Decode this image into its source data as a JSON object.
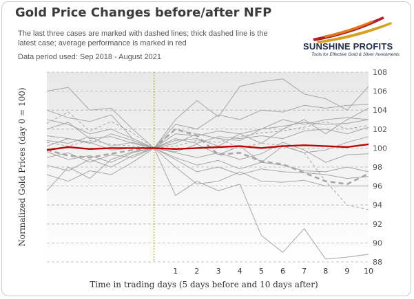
{
  "title": "Gold Price Changes before/after NFP",
  "subtitle": "The last three cases are marked with dashed lines; thick dashed line is the latest case; average performance is marked in red",
  "period": "Data period used: Sep 2018 - August 2021",
  "logo": {
    "name": "SUNSHINE PROFITS",
    "tagline": "Tools for Effective Gold & Silver Investments"
  },
  "chart_data": {
    "type": "line",
    "xlabel": "Time in trading days (5 days before and 10 days after)",
    "ylabel": "Normalized Gold Prices (day 0 = 100)",
    "x": [
      -5,
      -4,
      -3,
      -2,
      -1,
      0,
      1,
      2,
      3,
      4,
      5,
      6,
      7,
      8,
      9,
      10
    ],
    "x_tick_labels": [
      "",
      "",
      "",
      "",
      "",
      "",
      "1",
      "2",
      "3",
      "4",
      "5",
      "6",
      "7",
      "8",
      "9",
      "10"
    ],
    "ylim": [
      88,
      108
    ],
    "y_ticks": [
      88,
      90,
      92,
      94,
      96,
      98,
      100,
      102,
      104,
      106,
      108
    ],
    "y_axis_position": "right",
    "event_marker": {
      "x": 0,
      "style": "dotted",
      "color": "#c8a020"
    },
    "colors": {
      "history": "#a6a6a6",
      "average": "#c00000",
      "event": "#c8a020",
      "grid": "#b0b0b0"
    },
    "series": [
      {
        "values": [
          106.0,
          106.4,
          104.0,
          104.2,
          102.0,
          100.0,
          103.0,
          105.0,
          103.3,
          106.5,
          107.0,
          107.3,
          105.7,
          105.2,
          104.0,
          106.5
        ],
        "style": "solid"
      },
      {
        "values": [
          104.0,
          103.2,
          102.8,
          103.5,
          101.0,
          100.0,
          102.5,
          102.0,
          103.5,
          103.0,
          104.0,
          103.8,
          104.5,
          104.2,
          104.5,
          104.6
        ],
        "style": "solid"
      },
      {
        "values": [
          103.0,
          102.5,
          101.5,
          102.0,
          101.0,
          100.0,
          101.5,
          101.3,
          101.8,
          101.5,
          102.0,
          102.3,
          102.7,
          102.5,
          102.6,
          103.0
        ],
        "style": "solid"
      },
      {
        "values": [
          102.0,
          102.7,
          101.0,
          101.2,
          100.5,
          100.0,
          101.0,
          100.5,
          101.2,
          101.0,
          101.3,
          101.0,
          101.8,
          102.0,
          101.5,
          102.2
        ],
        "style": "solid"
      },
      {
        "values": [
          101.3,
          101.0,
          100.5,
          101.5,
          100.8,
          100.0,
          100.5,
          101.5,
          101.0,
          100.8,
          102.0,
          103.0,
          102.5,
          103.0,
          103.2,
          103.0
        ],
        "style": "solid"
      },
      {
        "values": [
          100.8,
          100.5,
          101.2,
          100.2,
          100.6,
          100.0,
          100.8,
          101.0,
          100.2,
          101.5,
          100.5,
          102.0,
          103.0,
          101.5,
          103.0,
          104.2
        ],
        "style": "solid"
      },
      {
        "values": [
          100.2,
          101.0,
          100.6,
          99.8,
          100.0,
          100.0,
          99.6,
          100.4,
          99.3,
          100.2,
          98.5,
          100.2,
          99.5,
          99.8,
          100.6,
          101.2
        ],
        "style": "solid"
      },
      {
        "values": [
          99.6,
          98.8,
          99.2,
          98.5,
          99.5,
          100.0,
          99.5,
          99.0,
          99.5,
          98.8,
          99.4,
          100.6,
          99.8,
          98.5,
          99.3,
          99.4
        ],
        "style": "solid"
      },
      {
        "values": [
          99.0,
          99.5,
          98.5,
          99.3,
          99.0,
          100.0,
          99.0,
          98.2,
          98.7,
          97.8,
          98.5,
          98.2,
          97.6,
          97.5,
          98.0,
          97.5
        ],
        "style": "solid"
      },
      {
        "values": [
          98.2,
          97.6,
          98.8,
          98.0,
          99.2,
          100.0,
          98.8,
          97.5,
          98.0,
          97.2,
          97.8,
          97.5,
          97.4,
          97.2,
          96.8,
          97.0
        ],
        "style": "solid"
      },
      {
        "values": [
          97.2,
          96.5,
          97.6,
          97.2,
          98.5,
          100.0,
          98.0,
          96.2,
          96.5,
          97.5,
          96.5,
          96.4,
          96.6,
          96.0,
          96.0,
          96.0
        ],
        "style": "solid"
      },
      {
        "values": [
          95.5,
          98.0,
          96.8,
          98.8,
          99.6,
          100.0,
          95.0,
          96.5,
          95.5,
          96.2,
          90.8,
          89.0,
          91.5,
          88.3,
          88.5,
          88.8
        ],
        "style": "solid"
      },
      {
        "values": [
          102.6,
          103.8,
          101.8,
          102.8,
          101.6,
          100.0,
          102.0,
          101.5,
          101.0,
          100.0,
          100.5,
          100.3,
          99.5,
          96.5,
          94.0,
          93.5
        ],
        "style": "dashed"
      },
      {
        "values": [
          100.6,
          100.2,
          100.8,
          100.4,
          100.2,
          100.0,
          100.2,
          100.8,
          100.6,
          101.2,
          101.6,
          101.8,
          102.2,
          102.8,
          102.0,
          102.4
        ],
        "style": "dashed"
      },
      {
        "values": [
          99.8,
          99.2,
          99.0,
          99.4,
          99.8,
          100.0,
          102.0,
          101.3,
          99.3,
          99.5,
          98.6,
          98.3,
          97.4,
          96.5,
          96.2,
          97.3
        ],
        "style": "thick-dashed"
      },
      {
        "name": "average",
        "values": [
          99.8,
          100.1,
          99.9,
          100.0,
          100.0,
          100.0,
          99.9,
          100.0,
          100.1,
          100.2,
          100.0,
          100.2,
          100.3,
          100.2,
          100.1,
          100.4
        ],
        "style": "average"
      }
    ]
  }
}
